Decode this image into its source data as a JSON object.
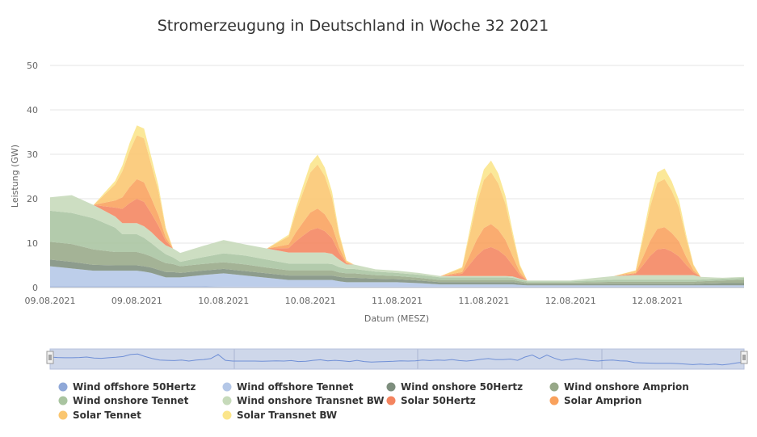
{
  "chart_data": {
    "type": "area",
    "stacked": true,
    "title": "Stromerzeugung in Deutschland in Woche 32 2021",
    "xlabel": "Datum (MESZ)",
    "ylabel": "Leistung (GW)",
    "ylim": [
      0,
      50
    ],
    "yticks": [
      0,
      10,
      20,
      30,
      40,
      50
    ],
    "x_hours": [
      0,
      3,
      6,
      9,
      10,
      11,
      12,
      13,
      14,
      15,
      16,
      17,
      18,
      21,
      24,
      27,
      30,
      33,
      34,
      35,
      36,
      37,
      38,
      39,
      40,
      41,
      42,
      45,
      48,
      51,
      54,
      57,
      58,
      59,
      60,
      61,
      62,
      63,
      64,
      65,
      66,
      69,
      72,
      75,
      78,
      81,
      82,
      83,
      84,
      85,
      86,
      87,
      88,
      89,
      90,
      93,
      96
    ],
    "x_tick_labels": [
      {
        "label": "09.08.2021",
        "hour": 0
      },
      {
        "label": "09.08.2021",
        "hour": 12
      },
      {
        "label": "10.08.2021",
        "hour": 24
      },
      {
        "label": "10.08.2021",
        "hour": 36
      },
      {
        "label": "11.08.2021",
        "hour": 48
      },
      {
        "label": "11.08.2021",
        "hour": 60
      },
      {
        "label": "12.08.2021",
        "hour": 72
      },
      {
        "label": "12.08.2021",
        "hour": 84
      }
    ],
    "series": [
      {
        "name": "Wind offshore 50Hertz",
        "color": "#8FA8D8",
        "values": [
          0.3,
          0.3,
          0.3,
          0.3,
          0.3,
          0.3,
          0.3,
          0.3,
          0.3,
          0.3,
          0.3,
          0.3,
          0.3,
          0.3,
          0.2,
          0.2,
          0.2,
          0.2,
          0.2,
          0.2,
          0.2,
          0.2,
          0.2,
          0.2,
          0.2,
          0.2,
          0.2,
          0.2,
          0.2,
          0.2,
          0.2,
          0.2,
          0.2,
          0.2,
          0.2,
          0.2,
          0.2,
          0.2,
          0.2,
          0.2,
          0.2,
          0.2,
          0.2,
          0.2,
          0.2,
          0.2,
          0.2,
          0.2,
          0.2,
          0.2,
          0.2,
          0.2,
          0.2,
          0.2,
          0.2,
          0.2,
          0.2
        ]
      },
      {
        "name": "Wind offshore Tennet",
        "color": "#B4C7E7",
        "values": [
          4.5,
          4.0,
          3.5,
          3.5,
          3.5,
          3.5,
          3.5,
          3.3,
          3.0,
          2.5,
          2.0,
          2.0,
          2.0,
          2.5,
          3.0,
          2.5,
          2.0,
          1.5,
          1.5,
          1.5,
          1.5,
          1.5,
          1.5,
          1.5,
          1.2,
          1.0,
          1.0,
          1.0,
          1.0,
          0.8,
          0.5,
          0.5,
          0.5,
          0.5,
          0.5,
          0.5,
          0.5,
          0.5,
          0.5,
          0.4,
          0.3,
          0.3,
          0.3,
          0.3,
          0.3,
          0.3,
          0.3,
          0.3,
          0.3,
          0.3,
          0.3,
          0.3,
          0.3,
          0.3,
          0.3,
          0.3,
          0.3
        ]
      },
      {
        "name": "Wind onshore 50Hertz",
        "color": "#7D8E7D",
        "values": [
          1.5,
          1.5,
          1.3,
          1.2,
          1.2,
          1.2,
          1.2,
          1.2,
          1.2,
          1.2,
          1.2,
          1.2,
          1.0,
          1.0,
          1.0,
          1.0,
          1.0,
          1.0,
          1.0,
          1.0,
          1.0,
          1.0,
          1.0,
          1.0,
          1.0,
          1.0,
          1.0,
          0.8,
          0.7,
          0.6,
          0.5,
          0.5,
          0.5,
          0.5,
          0.5,
          0.5,
          0.5,
          0.5,
          0.5,
          0.4,
          0.3,
          0.3,
          0.3,
          0.3,
          0.3,
          0.3,
          0.3,
          0.3,
          0.3,
          0.3,
          0.3,
          0.3,
          0.3,
          0.3,
          0.4,
          0.5,
          0.5
        ]
      },
      {
        "name": "Wind onshore Amprion",
        "color": "#97A888",
        "values": [
          4.0,
          4.0,
          3.5,
          3.0,
          3.0,
          3.0,
          3.0,
          2.8,
          2.5,
          2.2,
          2.0,
          1.8,
          1.5,
          1.5,
          1.5,
          1.5,
          1.3,
          1.2,
          1.2,
          1.2,
          1.2,
          1.2,
          1.2,
          1.2,
          1.0,
          1.0,
          1.0,
          0.8,
          0.7,
          0.6,
          0.5,
          0.5,
          0.5,
          0.5,
          0.5,
          0.5,
          0.5,
          0.5,
          0.5,
          0.4,
          0.3,
          0.3,
          0.3,
          0.4,
          0.5,
          0.5,
          0.5,
          0.5,
          0.5,
          0.5,
          0.5,
          0.5,
          0.5,
          0.5,
          0.5,
          0.6,
          0.8
        ]
      },
      {
        "name": "Wind onshore Tennet",
        "color": "#A9C4A0",
        "values": [
          7.0,
          7.0,
          7.0,
          5.5,
          4.0,
          4.0,
          4.0,
          3.6,
          3.0,
          2.5,
          2.0,
          1.5,
          1.0,
          1.5,
          2.0,
          2.0,
          1.8,
          1.5,
          1.5,
          1.5,
          1.5,
          1.5,
          1.5,
          1.4,
          1.2,
          1.0,
          1.0,
          0.8,
          0.7,
          0.7,
          0.6,
          0.6,
          0.6,
          0.6,
          0.6,
          0.6,
          0.6,
          0.6,
          0.5,
          0.4,
          0.3,
          0.3,
          0.3,
          0.4,
          0.5,
          0.5,
          0.5,
          0.5,
          0.5,
          0.5,
          0.5,
          0.5,
          0.5,
          0.5,
          0.4,
          0.4,
          0.4
        ]
      },
      {
        "name": "Wind onshore Transnet BW",
        "color": "#C6DABA",
        "values": [
          3.0,
          4.0,
          3.0,
          2.5,
          2.5,
          2.5,
          2.5,
          2.6,
          2.5,
          2.2,
          2.0,
          2.0,
          2.0,
          2.5,
          3.0,
          2.5,
          2.5,
          2.5,
          2.5,
          2.5,
          2.5,
          2.5,
          2.5,
          2.3,
          1.7,
          1.0,
          1.0,
          0.5,
          0.5,
          0.4,
          0.3,
          0.3,
          0.3,
          0.3,
          0.3,
          0.3,
          0.3,
          0.3,
          0.3,
          0.2,
          0.2,
          0.2,
          0.2,
          0.5,
          0.8,
          1.0,
          1.0,
          1.0,
          1.0,
          1.0,
          1.0,
          1.0,
          1.0,
          1.0,
          0.6,
          0.2,
          0.2
        ]
      },
      {
        "name": "Solar 50Hertz",
        "color": "#F4845F",
        "values": [
          0,
          0,
          0,
          2.0,
          3.2,
          4.5,
          5.5,
          5.5,
          4.2,
          3.0,
          1.0,
          0,
          0,
          0,
          0,
          0,
          0,
          1.0,
          2.5,
          3.8,
          5.0,
          5.5,
          4.8,
          3.5,
          1.5,
          0.2,
          0,
          0,
          0,
          0,
          0,
          0.5,
          2.5,
          4.5,
          6.0,
          6.5,
          5.8,
          4.5,
          2.5,
          0.8,
          0,
          0,
          0,
          0,
          0,
          0.3,
          2.2,
          4.3,
          5.8,
          6.0,
          5.3,
          4.2,
          2.3,
          0.6,
          0,
          0,
          0
        ]
      },
      {
        "name": "Solar Amprion",
        "color": "#F9A15C",
        "values": [
          0,
          0,
          0,
          1.6,
          2.6,
          3.6,
          4.4,
          4.4,
          3.4,
          2.4,
          0.8,
          0,
          0,
          0,
          0,
          0,
          0,
          0.8,
          2.0,
          3.0,
          4.0,
          4.4,
          3.8,
          2.8,
          1.2,
          0.2,
          0,
          0,
          0,
          0,
          0,
          0.4,
          2.0,
          3.6,
          4.8,
          5.2,
          4.6,
          3.6,
          2.0,
          0.6,
          0,
          0,
          0,
          0,
          0,
          0.2,
          1.8,
          3.4,
          4.6,
          4.8,
          4.2,
          3.4,
          1.8,
          0.5,
          0,
          0,
          0
        ]
      },
      {
        "name": "Solar Tennet",
        "color": "#FAC670",
        "values": [
          0,
          0,
          0,
          3.6,
          5.9,
          8.1,
          9.9,
          9.9,
          7.6,
          5.4,
          1.8,
          0,
          0,
          0,
          0,
          0,
          0,
          1.8,
          4.5,
          6.8,
          9.0,
          9.9,
          8.6,
          6.3,
          2.7,
          0.4,
          0,
          0,
          0,
          0,
          0,
          0.9,
          4.5,
          8.1,
          10.8,
          11.7,
          10.4,
          8.1,
          4.5,
          1.4,
          0,
          0,
          0,
          0,
          0,
          0.5,
          4.0,
          7.7,
          10.4,
          10.8,
          9.5,
          7.6,
          4.1,
          1.1,
          0,
          0,
          0
        ]
      },
      {
        "name": "Solar Transnet BW",
        "color": "#FBE58A",
        "values": [
          0,
          0,
          0,
          0.8,
          1.3,
          1.8,
          2.2,
          2.2,
          1.7,
          1.2,
          0.4,
          0,
          0,
          0,
          0,
          0,
          0,
          0.4,
          1.0,
          1.5,
          2.0,
          2.2,
          1.9,
          1.4,
          0.6,
          0.1,
          0,
          0,
          0,
          0,
          0,
          0.2,
          1.0,
          1.8,
          2.4,
          2.6,
          2.3,
          1.8,
          1.0,
          0.3,
          0,
          0,
          0,
          0,
          0,
          0.1,
          0.9,
          1.7,
          2.3,
          2.4,
          2.1,
          1.7,
          0.9,
          0.2,
          0,
          0,
          0
        ]
      }
    ],
    "navigator_values": [
      4.8,
      4.6,
      4.5,
      4.5,
      4.6,
      4.8,
      4.4,
      4.3,
      4.5,
      4.7,
      5.0,
      5.8,
      6.0,
      5.0,
      4.2,
      3.6,
      3.5,
      3.4,
      3.6,
      3.2,
      3.6,
      3.8,
      4.2,
      5.8,
      3.5,
      3.2,
      3.2,
      3.2,
      3.2,
      3.1,
      3.2,
      3.3,
      3.2,
      3.4,
      3.0,
      3.1,
      3.5,
      3.7,
      3.3,
      3.5,
      3.3,
      3.0,
      3.5,
      3.0,
      2.8,
      2.9,
      3.0,
      3.1,
      3.3,
      3.2,
      3.3,
      3.6,
      3.4,
      3.6,
      3.5,
      3.8,
      3.4,
      3.2,
      3.5,
      3.9,
      4.2,
      3.8,
      3.8,
      4.0,
      3.5,
      4.8,
      5.6,
      4.2,
      5.6,
      4.4,
      3.5,
      3.8,
      4.2,
      3.8,
      3.4,
      3.2,
      3.5,
      3.6,
      3.3,
      3.2,
      2.6,
      2.5,
      2.4,
      2.3,
      2.3,
      2.3,
      2.2,
      2.0,
      1.8,
      2.0,
      1.8,
      2.0,
      1.7,
      2.0,
      2.5,
      2.8
    ]
  }
}
